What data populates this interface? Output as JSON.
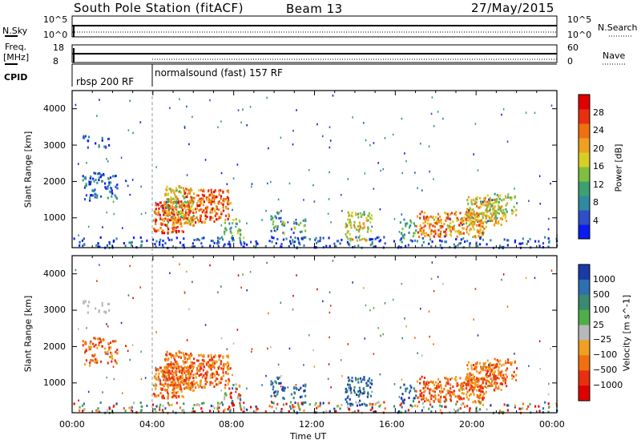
{
  "header": {
    "title": "South Pole Station (fitACF)",
    "beam": "Beam 13",
    "date": "27/May/2015"
  },
  "strip_panels": {
    "nsky_label": "N.Sky",
    "nsky_ticks": [
      "10^5",
      "10^0"
    ],
    "nsearch_label": "N.Search",
    "nsearch_ticks": [
      "10^5",
      "10^0"
    ],
    "freq_label": "Freq.",
    "freq_unit": "[MHz]",
    "freq_ticks": [
      "18",
      "8"
    ],
    "nave_label": "Nave",
    "nave_ticks": [
      "60",
      "0"
    ],
    "cpid_label": "CPID",
    "cpid_segments": [
      "rbsp 200 RF",
      "normalsound (fast) 157 RF"
    ]
  },
  "chart_data": [
    {
      "type": "heatmap",
      "title": "",
      "ylabel": "Slant Range [km]",
      "xlabel": "Time UT",
      "x_ticks": [
        "00:00",
        "04:00",
        "08:00",
        "12:00",
        "16:00",
        "20:00",
        "00:00"
      ],
      "y_ticks": [
        "1000",
        "2000",
        "3000",
        "4000"
      ],
      "ylim": [
        180,
        4500
      ],
      "colorbar": {
        "label": "Power [dB]",
        "ticks": [
          "4",
          "8",
          "12",
          "16",
          "20",
          "24",
          "28"
        ],
        "colors": [
          "#0a1cf0",
          "#2d4fc7",
          "#2f8aa0",
          "#3ea070",
          "#7fbf40",
          "#d8d020",
          "#f0a020",
          "#f07010",
          "#e83010",
          "#e00000"
        ]
      }
    },
    {
      "type": "heatmap",
      "title": "",
      "ylabel": "Slant Range [km]",
      "xlabel": "Time UT",
      "x_ticks": [
        "00:00",
        "04:00",
        "08:00",
        "12:00",
        "16:00",
        "20:00",
        "00:00"
      ],
      "y_ticks": [
        "1000",
        "2000",
        "3000",
        "4000"
      ],
      "ylim": [
        180,
        4500
      ],
      "colorbar": {
        "label": "Velocity [m s^-1]",
        "ticks": [
          "1000",
          "500",
          "100",
          "25",
          "−25",
          "−100",
          "−500",
          "−1000"
        ],
        "colors": [
          "#1a3aa8",
          "#2e6fb0",
          "#3a8a70",
          "#4fae4a",
          "#b8b8b8",
          "#f0a020",
          "#f07010",
          "#e83010",
          "#e00000"
        ]
      }
    }
  ],
  "x_axis_label": "Time UT"
}
